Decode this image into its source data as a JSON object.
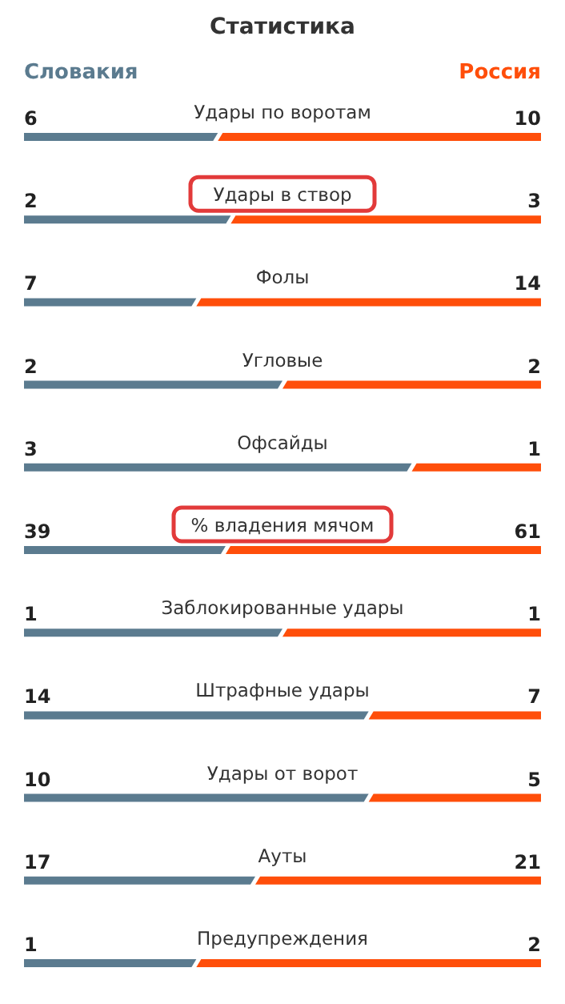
{
  "chart_data": [
    {
      "type": "bar",
      "orientation": "horizontal",
      "stacked": true,
      "data_labels": true,
      "title": "Статистика",
      "legend": "top",
      "categories": [
        "Удары по воротам"
      ],
      "series": [
        {
          "name": "Словакия",
          "color": "#5b7b8f",
          "values": [
            6
          ]
        },
        {
          "name": "Россия",
          "color": "#ff4e0a",
          "values": [
            10
          ]
        }
      ]
    },
    {
      "type": "bar",
      "orientation": "horizontal",
      "stacked": true,
      "data_labels": true,
      "categories": [
        "Удары в створ"
      ],
      "series": [
        {
          "color": "#5b7b8f",
          "values": [
            2
          ]
        },
        {
          "color": "#ff4e0a",
          "values": [
            3
          ]
        }
      ]
    },
    {
      "type": "bar",
      "orientation": "horizontal",
      "stacked": true,
      "data_labels": true,
      "categories": [
        "Фолы"
      ],
      "series": [
        {
          "color": "#5b7b8f",
          "values": [
            7
          ]
        },
        {
          "color": "#ff4e0a",
          "values": [
            14
          ]
        }
      ]
    },
    {
      "type": "bar",
      "orientation": "horizontal",
      "stacked": true,
      "data_labels": true,
      "categories": [
        "Угловые"
      ],
      "series": [
        {
          "color": "#5b7b8f",
          "values": [
            2
          ]
        },
        {
          "color": "#ff4e0a",
          "values": [
            2
          ]
        }
      ]
    },
    {
      "type": "bar",
      "orientation": "horizontal",
      "stacked": true,
      "data_labels": true,
      "categories": [
        "Офсайды"
      ],
      "series": [
        {
          "color": "#5b7b8f",
          "values": [
            3
          ]
        },
        {
          "color": "#ff4e0a",
          "values": [
            1
          ]
        }
      ]
    },
    {
      "type": "bar",
      "orientation": "horizontal",
      "stacked": true,
      "data_labels": true,
      "categories": [
        "% владения мячом"
      ],
      "series": [
        {
          "color": "#5b7b8f",
          "values": [
            39
          ]
        },
        {
          "color": "#ff4e0a",
          "values": [
            61
          ]
        }
      ]
    },
    {
      "type": "bar",
      "orientation": "horizontal",
      "stacked": true,
      "data_labels": true,
      "categories": [
        "Заблокированные удары"
      ],
      "series": [
        {
          "color": "#5b7b8f",
          "values": [
            1
          ]
        },
        {
          "color": "#ff4e0a",
          "values": [
            1
          ]
        }
      ]
    },
    {
      "type": "bar",
      "orientation": "horizontal",
      "stacked": true,
      "data_labels": true,
      "categories": [
        "Штрафные удары"
      ],
      "series": [
        {
          "color": "#5b7b8f",
          "values": [
            14
          ]
        },
        {
          "color": "#ff4e0a",
          "values": [
            7
          ]
        }
      ]
    },
    {
      "type": "bar",
      "orientation": "horizontal",
      "stacked": true,
      "data_labels": true,
      "categories": [
        "Удары от ворот"
      ],
      "series": [
        {
          "color": "#5b7b8f",
          "values": [
            10
          ]
        },
        {
          "color": "#ff4e0a",
          "values": [
            5
          ]
        }
      ]
    },
    {
      "type": "bar",
      "orientation": "horizontal",
      "stacked": true,
      "data_labels": true,
      "categories": [
        "Ауты"
      ],
      "series": [
        {
          "color": "#5b7b8f",
          "values": [
            17
          ]
        },
        {
          "color": "#ff4e0a",
          "values": [
            21
          ]
        }
      ]
    },
    {
      "type": "bar",
      "orientation": "horizontal",
      "stacked": true,
      "data_labels": true,
      "categories": [
        "Предупреждения"
      ],
      "series": [
        {
          "color": "#5b7b8f",
          "values": [
            1
          ]
        },
        {
          "color": "#ff4e0a",
          "values": [
            2
          ]
        }
      ]
    }
  ]
}
